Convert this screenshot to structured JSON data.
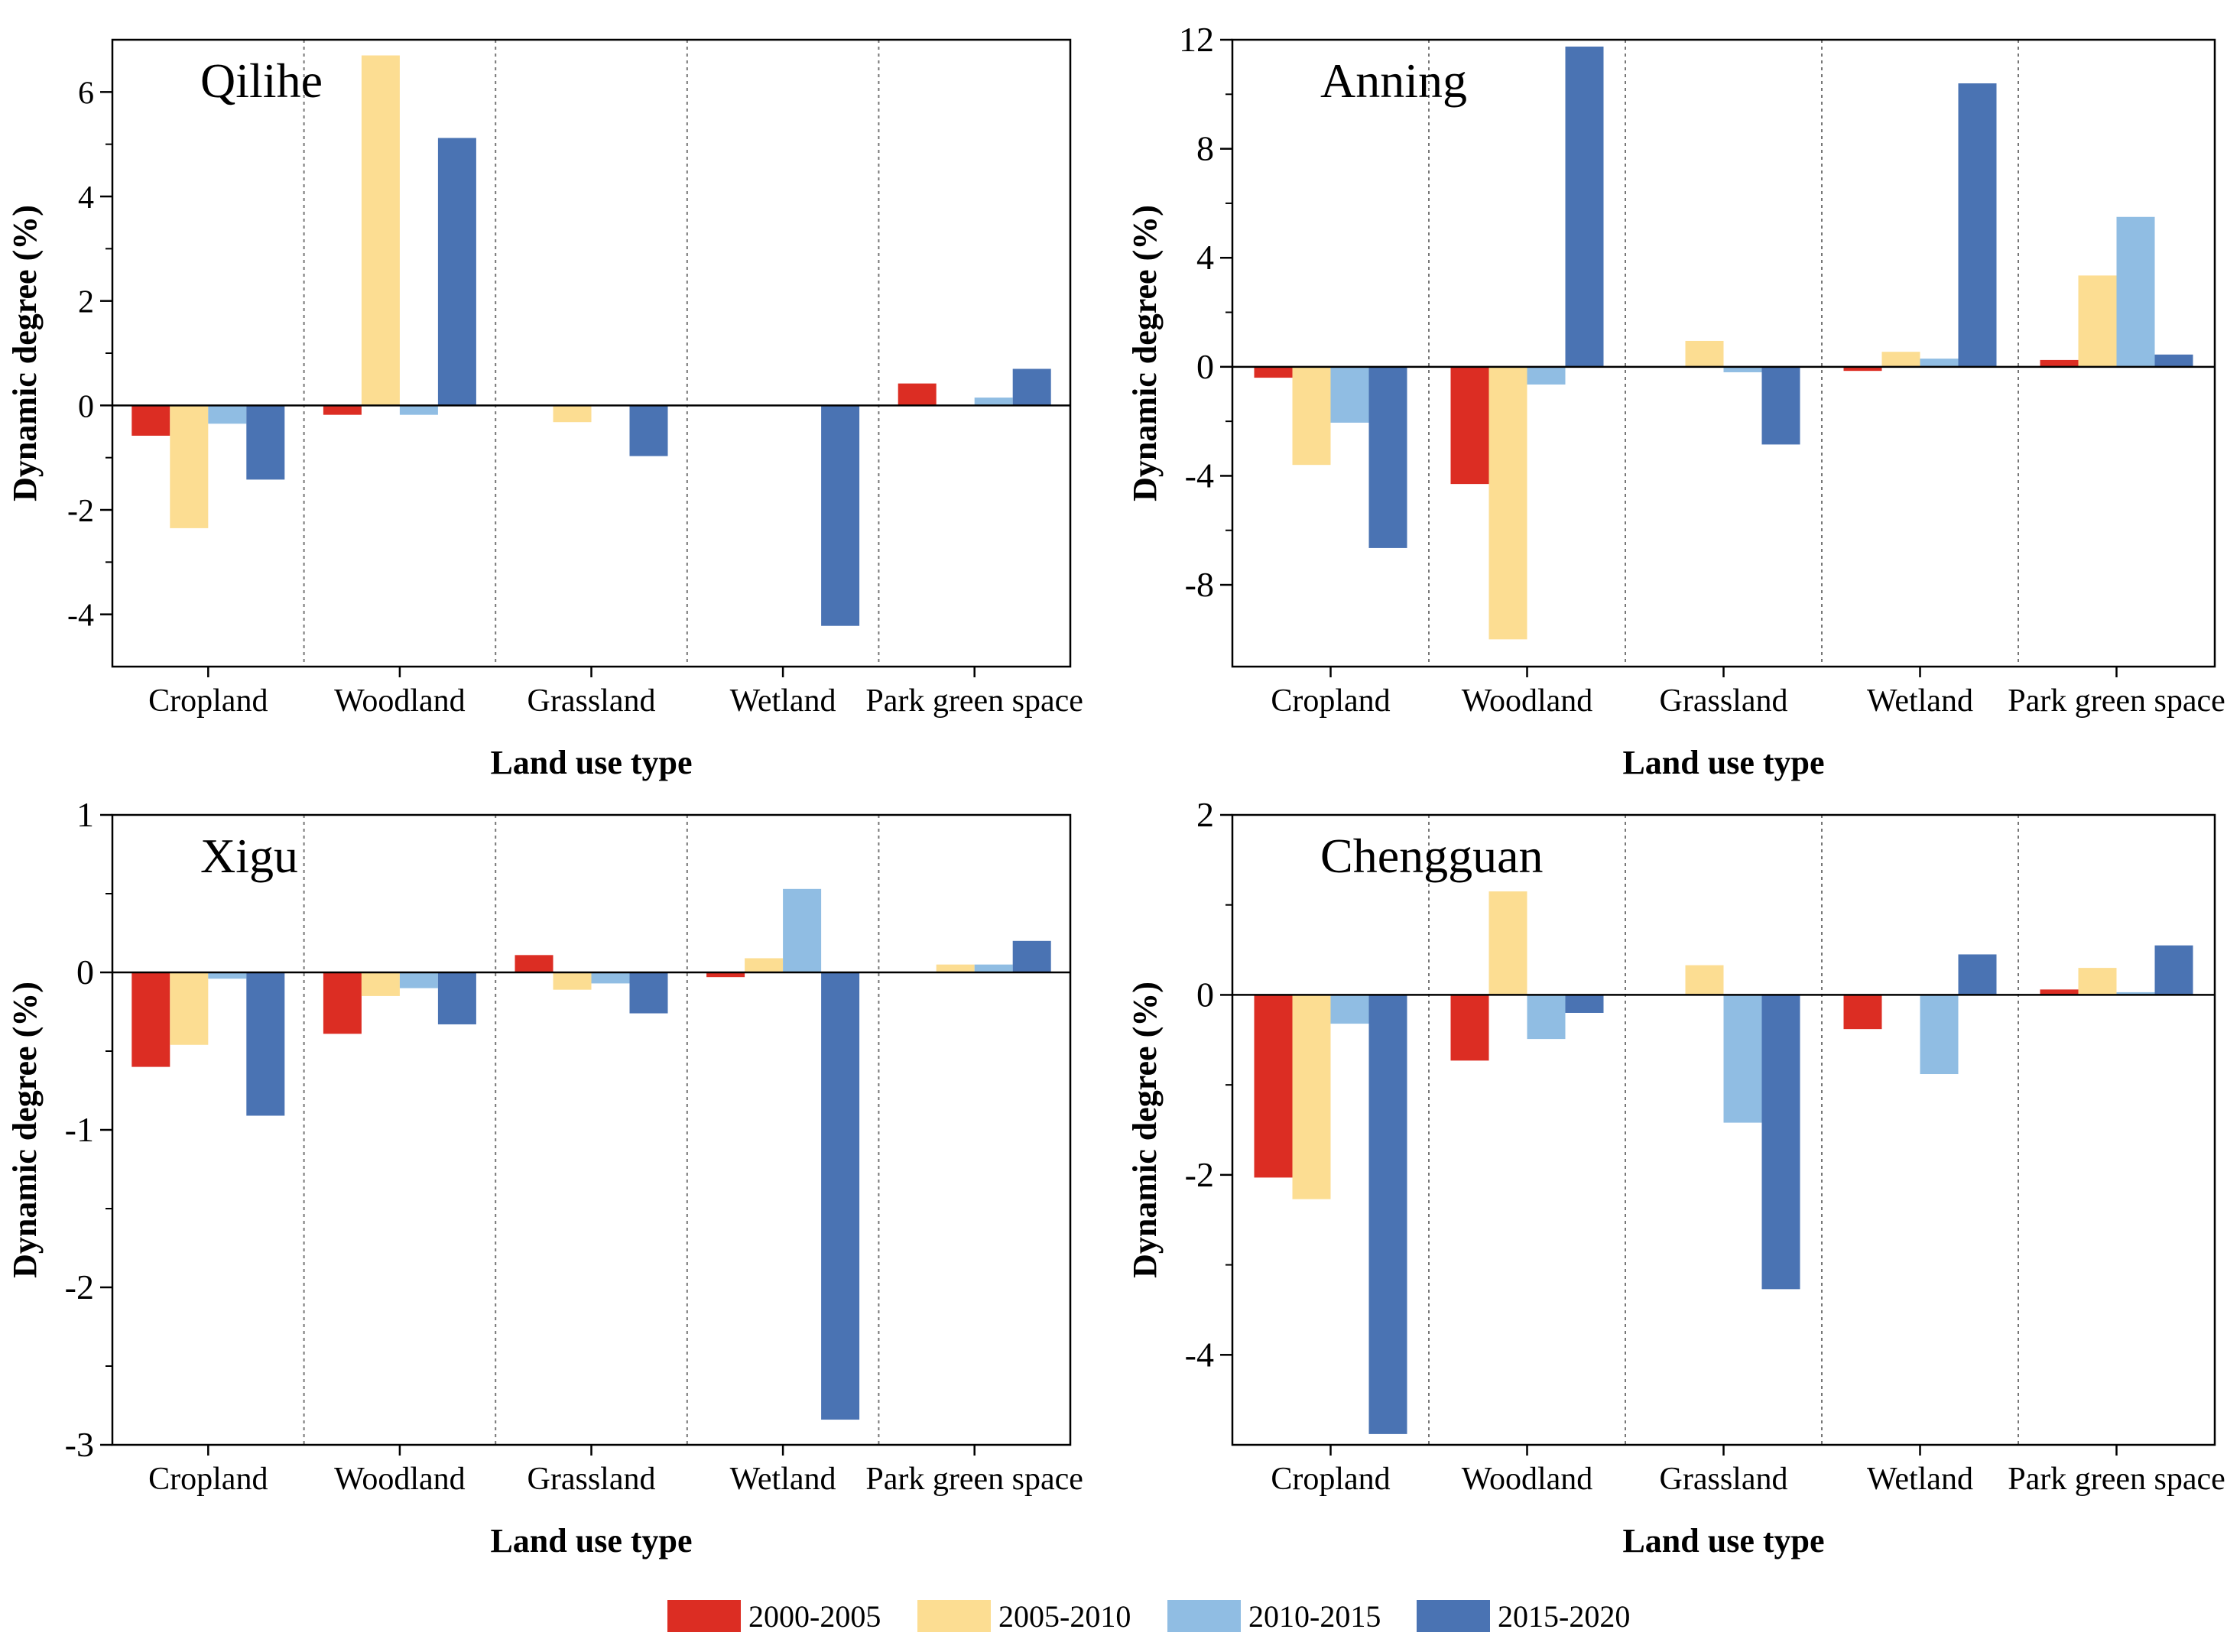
{
  "chart_data": [
    {
      "type": "bar",
      "title": "Qilihe",
      "xlabel": "Land use type",
      "ylabel": "Dynamic degree (%)",
      "categories": [
        "Cropland",
        "Woodland",
        "Grassland",
        "Wetland",
        "Park green space"
      ],
      "ylim": [
        -5,
        7
      ],
      "yticks": [
        -4,
        -2,
        0,
        2,
        4,
        6
      ],
      "series": [
        {
          "name": "2000-2005",
          "values": [
            -0.58,
            -0.18,
            0,
            0,
            0.42
          ]
        },
        {
          "name": "2005-2010",
          "values": [
            -2.35,
            6.7,
            -0.32,
            0,
            0
          ]
        },
        {
          "name": "2010-2015",
          "values": [
            -0.35,
            -0.18,
            0,
            0,
            0.15
          ]
        },
        {
          "name": "2015-2020",
          "values": [
            -1.42,
            5.12,
            -0.97,
            -4.22,
            0.7
          ]
        }
      ]
    },
    {
      "type": "bar",
      "title": "Anning",
      "xlabel": "Land use type",
      "ylabel": "Dynamic degree (%)",
      "categories": [
        "Cropland",
        "Woodland",
        "Grassland",
        "Wetland",
        "Park green space"
      ],
      "ylim": [
        -11,
        12
      ],
      "yticks": [
        -8,
        -4,
        0,
        4,
        8,
        12
      ],
      "series": [
        {
          "name": "2000-2005",
          "values": [
            -0.4,
            -4.3,
            0,
            -0.15,
            0.25
          ]
        },
        {
          "name": "2005-2010",
          "values": [
            -3.6,
            -10.0,
            0.95,
            0.55,
            3.35
          ]
        },
        {
          "name": "2010-2015",
          "values": [
            -2.05,
            -0.65,
            -0.2,
            0.3,
            5.5
          ]
        },
        {
          "name": "2015-2020",
          "values": [
            -6.65,
            11.75,
            -2.85,
            10.4,
            0.45
          ]
        }
      ]
    },
    {
      "type": "bar",
      "title": "Xigu",
      "xlabel": "Land use type",
      "ylabel": "Dynamic degree (%)",
      "categories": [
        "Cropland",
        "Woodland",
        "Grassland",
        "Wetland",
        "Park green space"
      ],
      "ylim": [
        -3,
        1
      ],
      "yticks": [
        -3,
        -2,
        -1,
        0,
        1
      ],
      "series": [
        {
          "name": "2000-2005",
          "values": [
            -0.6,
            -0.39,
            0.11,
            -0.03,
            0
          ]
        },
        {
          "name": "2005-2010",
          "values": [
            -0.46,
            -0.15,
            -0.11,
            0.09,
            0.05
          ]
        },
        {
          "name": "2010-2015",
          "values": [
            -0.04,
            -0.1,
            -0.07,
            0.53,
            0.05
          ]
        },
        {
          "name": "2015-2020",
          "values": [
            -0.91,
            -0.33,
            -0.26,
            -2.84,
            0.2
          ]
        }
      ]
    },
    {
      "type": "bar",
      "title": "Chengguan",
      "xlabel": "Land use type",
      "ylabel": "Dynamic degree (%)",
      "categories": [
        "Cropland",
        "Woodland",
        "Grassland",
        "Wetland",
        "Park green space"
      ],
      "ylim": [
        -5,
        2
      ],
      "yticks": [
        -4,
        -2,
        0,
        2
      ],
      "series": [
        {
          "name": "2000-2005",
          "values": [
            -2.03,
            -0.73,
            0,
            -0.38,
            0.06
          ]
        },
        {
          "name": "2005-2010",
          "values": [
            -2.27,
            1.15,
            0.33,
            0,
            0.3
          ]
        },
        {
          "name": "2010-2015",
          "values": [
            -0.32,
            -0.49,
            -1.42,
            -0.88,
            0.03
          ]
        },
        {
          "name": "2015-2020",
          "values": [
            -4.88,
            -0.2,
            -3.27,
            0.45,
            0.55
          ]
        }
      ]
    }
  ],
  "legend": {
    "items": [
      {
        "label": "2000-2005",
        "color": "#dc2d23"
      },
      {
        "label": "2005-2010",
        "color": "#fcdd92"
      },
      {
        "label": "2010-2015",
        "color": "#90bde3"
      },
      {
        "label": "2015-2020",
        "color": "#4a73b3"
      }
    ]
  }
}
